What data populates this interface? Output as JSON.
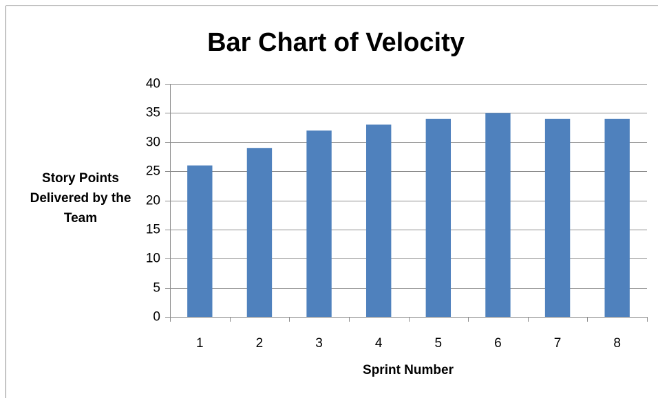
{
  "chart_data": {
    "type": "bar",
    "title": "Bar Chart of Velocity",
    "x_label": "Sprint Number",
    "y_label": "Story Points Delivered by the Team",
    "categories": [
      "1",
      "2",
      "3",
      "4",
      "5",
      "6",
      "7",
      "8"
    ],
    "values": [
      26,
      29,
      32,
      33,
      34,
      35,
      34,
      34
    ],
    "color": "#4f81bd",
    "ylim": [
      0,
      40
    ],
    "yticks": [
      0,
      5,
      10,
      15,
      20,
      25,
      30,
      35,
      40
    ],
    "grid": true
  }
}
